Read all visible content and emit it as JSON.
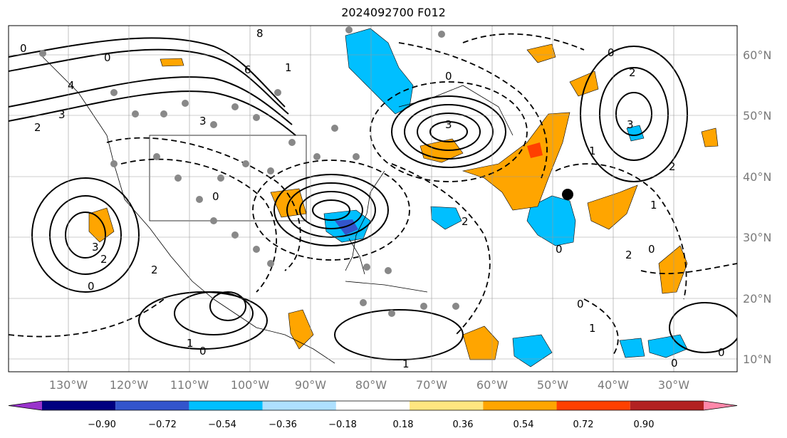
{
  "title": "2024092700 F012",
  "map": {
    "longitude_labels": [
      "130°W",
      "120°W",
      "110°W",
      "100°W",
      "90°W",
      "80°W",
      "70°W",
      "60°W",
      "50°W",
      "40°W",
      "30°W"
    ],
    "latitude_labels": [
      "60°N",
      "50°N",
      "40°N",
      "30°N",
      "20°N",
      "10°N"
    ],
    "contour_labels": [
      "0",
      "0",
      "3",
      "2",
      "4",
      "3",
      "8",
      "6",
      "1",
      "0",
      "3",
      "2",
      "0",
      "2",
      "3",
      "2",
      "1",
      "0",
      "3",
      "0",
      "2",
      "1",
      "2",
      "0",
      "0",
      "1",
      "2",
      "0",
      "0",
      "1",
      "1",
      "0",
      "0"
    ],
    "grid": true,
    "stippling": true,
    "marker": "filled black circle near 50°W 37°N"
  },
  "colorbar": {
    "tick_labels": [
      "−0.90",
      "−0.72",
      "−0.54",
      "−0.36",
      "−0.18",
      "0.18",
      "0.36",
      "0.54",
      "0.72",
      "0.90"
    ],
    "colors": [
      "#9933cc",
      "#000080",
      "#3355cc",
      "#00bfff",
      "#aee0ff",
      "#ffffff",
      "#ffe680",
      "#ffa500",
      "#ff4000",
      "#b22222",
      "#ff88aa"
    ],
    "extend": "both"
  }
}
